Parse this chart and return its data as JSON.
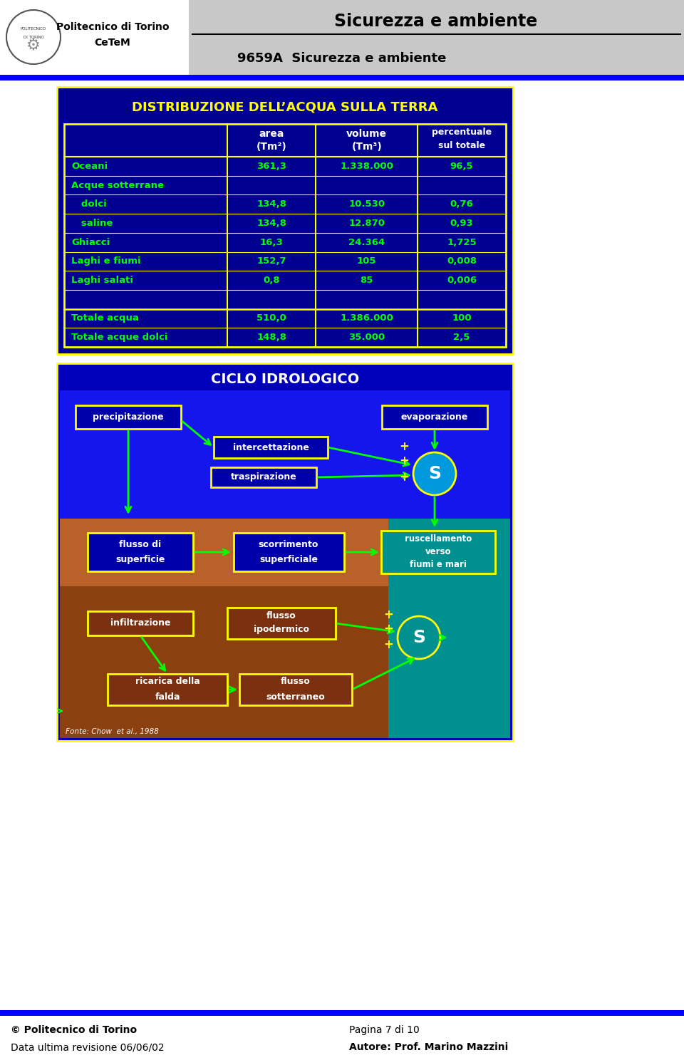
{
  "title_header": "Sicurezza e ambiente",
  "subtitle_header": "9659A  Sicurezza e ambiente",
  "institution": "Politecnico di Torino",
  "dept": "CeTeM",
  "footer_left1": "© Politecnico di Torino",
  "footer_left2": "Data ultima revisione 06/06/02",
  "footer_right1": "Pagina 7 di 10",
  "footer_right2": "Autore: Prof. Marino Mazzini",
  "table_title": "DISTRIBUZIONE DELL’ACQUA SULLA TERRA",
  "table_rows": [
    [
      "Oceani",
      "361,3",
      "1.338.000",
      "96,5"
    ],
    [
      "Acque sotterrane",
      "",
      "",
      ""
    ],
    [
      "   dolci",
      "134,8",
      "10.530",
      "0,76"
    ],
    [
      "   saline",
      "134,8",
      "12.870",
      "0,93"
    ],
    [
      "Ghiacci",
      "16,3",
      "24.364",
      "1,725"
    ],
    [
      "Laghi e fiumi",
      "152,7",
      "105",
      "0,008"
    ],
    [
      "Laghi salati",
      "0,8",
      "85",
      "0,006"
    ],
    [
      "",
      "",
      "",
      ""
    ],
    [
      "Totale acqua",
      "510,0",
      "1.386.000",
      "100"
    ],
    [
      "Totale acque dolci",
      "148,8",
      "35.000",
      "2,5"
    ]
  ],
  "bg_color": "#000090",
  "table_border": "#FFFF00",
  "table_title_color": "#FFFF00",
  "table_text_color": "#00FF00",
  "table_header_color": "#FFFFFF",
  "diagram_title": "CICLO IDROLOGICO",
  "diagram_bg": "#0000CC",
  "header_bg": "#C0C0C0",
  "blue_bar_color": "#0000FF",
  "footer_blue_bar": "#0000FF"
}
